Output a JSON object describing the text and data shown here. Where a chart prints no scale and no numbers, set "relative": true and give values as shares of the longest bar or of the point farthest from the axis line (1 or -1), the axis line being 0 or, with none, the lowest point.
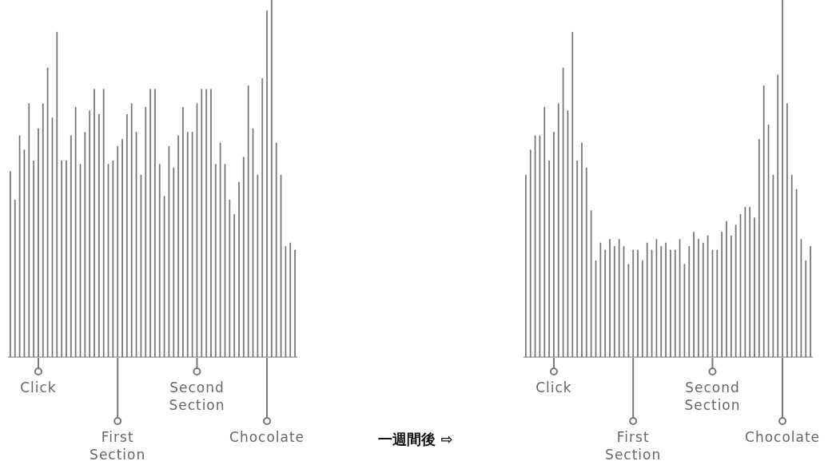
{
  "chart_data": [
    {
      "type": "bar",
      "relative": true,
      "color": "#8a8a8a",
      "annotations": [
        "一週間後 ⇨"
      ],
      "categories": [
        null,
        null,
        null,
        null,
        null,
        null,
        "Click",
        null,
        null,
        null,
        null,
        null,
        null,
        null,
        null,
        null,
        null,
        null,
        null,
        null,
        null,
        null,
        null,
        "First Section",
        null,
        null,
        null,
        null,
        null,
        null,
        null,
        null,
        null,
        null,
        null,
        null,
        null,
        null,
        null,
        null,
        "Second Section",
        null,
        null,
        null,
        null,
        null,
        null,
        null,
        null,
        null,
        null,
        null,
        null,
        null,
        null,
        "Chocolate",
        null,
        null,
        null,
        null,
        null,
        null
      ],
      "values": [
        0.52,
        0.44,
        0.62,
        0.58,
        0.71,
        0.55,
        0.64,
        0.71,
        0.81,
        0.67,
        0.91,
        0.55,
        0.55,
        0.62,
        0.7,
        0.54,
        0.63,
        0.69,
        0.75,
        0.68,
        0.75,
        0.54,
        0.55,
        0.59,
        0.61,
        0.68,
        0.71,
        0.63,
        0.51,
        0.7,
        0.75,
        0.75,
        0.54,
        0.45,
        0.59,
        0.53,
        0.62,
        0.7,
        0.63,
        0.63,
        0.71,
        0.75,
        0.75,
        0.75,
        0.54,
        0.6,
        0.54,
        0.44,
        0.4,
        0.49,
        0.56,
        0.76,
        0.64,
        0.51,
        0.78,
        0.97,
        1,
        0.6,
        0.51,
        0.31,
        0.32,
        0.3
      ]
    },
    {
      "type": "bar",
      "relative": true,
      "color": "#8a8a8a",
      "categories": [
        null,
        null,
        null,
        null,
        null,
        null,
        "Click",
        null,
        null,
        null,
        null,
        null,
        null,
        null,
        null,
        null,
        null,
        null,
        null,
        null,
        null,
        null,
        null,
        "First Section",
        null,
        null,
        null,
        null,
        null,
        null,
        null,
        null,
        null,
        null,
        null,
        null,
        null,
        null,
        null,
        null,
        "Second Section",
        null,
        null,
        null,
        null,
        null,
        null,
        null,
        null,
        null,
        null,
        null,
        null,
        null,
        null,
        "Chocolate",
        null,
        null,
        null,
        null,
        null,
        null
      ],
      "values": [
        0.51,
        0.58,
        0.62,
        0.62,
        0.7,
        0.55,
        0.63,
        0.71,
        0.81,
        0.69,
        0.91,
        0.55,
        0.6,
        0.53,
        0.41,
        0.27,
        0.32,
        0.3,
        0.33,
        0.31,
        0.33,
        0.31,
        0.26,
        0.3,
        0.3,
        0.27,
        0.32,
        0.3,
        0.33,
        0.31,
        0.32,
        0.3,
        0.3,
        0.33,
        0.26,
        0.31,
        0.35,
        0.33,
        0.32,
        0.34,
        0.3,
        0.3,
        0.35,
        0.38,
        0.34,
        0.37,
        0.4,
        0.42,
        0.42,
        0.39,
        0.61,
        0.76,
        0.65,
        0.51,
        0.79,
        1,
        0.71,
        0.51,
        0.47,
        0.33,
        0.27,
        0.31
      ]
    }
  ]
}
